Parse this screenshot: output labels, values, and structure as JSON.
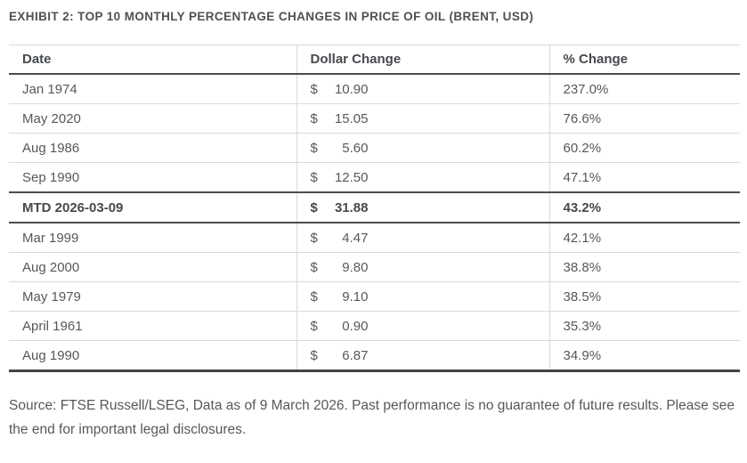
{
  "exhibit": {
    "title": "EXHIBIT 2: TOP 10 MONTHLY PERCENTAGE CHANGES IN PRICE OF OIL (BRENT, USD)"
  },
  "table": {
    "columns": [
      "Date",
      "Dollar Change",
      "% Change"
    ],
    "currency_symbol": "$",
    "rows": [
      {
        "date": "Jan 1974",
        "dollar": "10.90",
        "pct": "237.0%",
        "highlight": false
      },
      {
        "date": "May 2020",
        "dollar": "15.05",
        "pct": "76.6%",
        "highlight": false
      },
      {
        "date": "Aug 1986",
        "dollar": "5.60",
        "pct": "60.2%",
        "highlight": false
      },
      {
        "date": "Sep 1990",
        "dollar": "12.50",
        "pct": "47.1%",
        "highlight": false
      },
      {
        "date": "MTD 2026-03-09",
        "dollar": "31.88",
        "pct": "43.2%",
        "highlight": true
      },
      {
        "date": "Mar 1999",
        "dollar": "4.47",
        "pct": "42.1%",
        "highlight": false
      },
      {
        "date": "Aug 2000",
        "dollar": "9.80",
        "pct": "38.8%",
        "highlight": false
      },
      {
        "date": "May 1979",
        "dollar": "9.10",
        "pct": "38.5%",
        "highlight": false
      },
      {
        "date": "April 1961",
        "dollar": "0.90",
        "pct": "35.3%",
        "highlight": false
      },
      {
        "date": "Aug 1990",
        "dollar": "6.87",
        "pct": "34.9%",
        "highlight": false
      }
    ]
  },
  "source": "Source: FTSE Russell/LSEG, Data as of 9 March 2026. Past performance is no guarantee of future results. Please see the end for important legal disclosures.",
  "colors": {
    "title_text": "#4d5156",
    "body_text": "#55585c",
    "header_text": "#46494d",
    "light_border": "#d9dadb",
    "dark_border": "#4a4d50",
    "bottom_border": "#414447",
    "background": "#ffffff"
  }
}
